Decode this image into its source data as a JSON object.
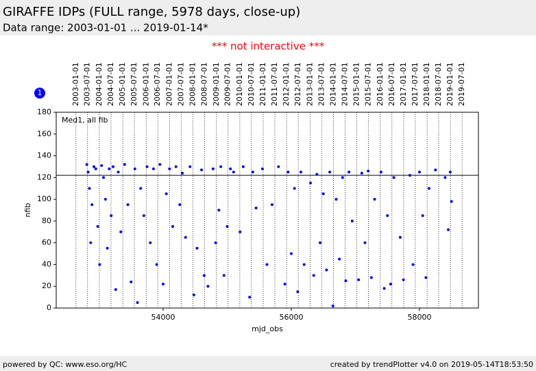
{
  "header": {
    "title": "GIRAFFE IDPs (FULL range, 5978 days, close-up)",
    "subtitle": "Data range: 2003-01-01 ... 2019-01-14*"
  },
  "notice": "*** not interactive ***",
  "badge": "1",
  "footer": {
    "left": "powered by QC: www.eso.org/HC",
    "right": "created by trendPlotter v4.0 on 2019-05-14T18:53:50"
  },
  "chart_data": {
    "type": "scatter",
    "annotation": "Med1, all fib",
    "x_label": "mjd_obs",
    "y_label": "nfib",
    "grid": false,
    "xlim": [
      52332,
      58920
    ],
    "ylim": [
      0,
      180
    ],
    "xticks": [
      54000,
      56000,
      58000
    ],
    "yticks": [
      0,
      20,
      40,
      60,
      80,
      100,
      120,
      140,
      160,
      180
    ],
    "reference_line": 122,
    "date_lines": [
      {
        "value": 52640,
        "label": "2003-01-01"
      },
      {
        "value": 52821,
        "label": "2003-07-01"
      },
      {
        "value": 53005,
        "label": "2004-01-01"
      },
      {
        "value": 53187,
        "label": "2004-07-01"
      },
      {
        "value": 53371,
        "label": "2005-01-01"
      },
      {
        "value": 53552,
        "label": "2005-07-01"
      },
      {
        "value": 53736,
        "label": "2006-01-01"
      },
      {
        "value": 53917,
        "label": "2006-07-01"
      },
      {
        "value": 54101,
        "label": "2007-01-01"
      },
      {
        "value": 54282,
        "label": "2007-07-01"
      },
      {
        "value": 54466,
        "label": "2008-01-01"
      },
      {
        "value": 54648,
        "label": "2008-07-01"
      },
      {
        "value": 54832,
        "label": "2009-01-01"
      },
      {
        "value": 55013,
        "label": "2009-07-01"
      },
      {
        "value": 55197,
        "label": "2010-01-01"
      },
      {
        "value": 55378,
        "label": "2010-07-01"
      },
      {
        "value": 55562,
        "label": "2011-01-01"
      },
      {
        "value": 55743,
        "label": "2011-07-01"
      },
      {
        "value": 55927,
        "label": "2012-01-01"
      },
      {
        "value": 56109,
        "label": "2012-07-01"
      },
      {
        "value": 56293,
        "label": "2013-01-01"
      },
      {
        "value": 56474,
        "label": "2013-07-01"
      },
      {
        "value": 56658,
        "label": "2014-01-01"
      },
      {
        "value": 56839,
        "label": "2014-07-01"
      },
      {
        "value": 57023,
        "label": "2015-01-01"
      },
      {
        "value": 57204,
        "label": "2015-07-01"
      },
      {
        "value": 57388,
        "label": "2016-01-01"
      },
      {
        "value": 57570,
        "label": "2016-07-01"
      },
      {
        "value": 57754,
        "label": "2017-01-01"
      },
      {
        "value": 57935,
        "label": "2017-07-01"
      },
      {
        "value": 58119,
        "label": "2018-01-01"
      },
      {
        "value": 58300,
        "label": "2018-07-01"
      },
      {
        "value": 58484,
        "label": "2019-01-01"
      },
      {
        "value": 58665,
        "label": "2019-07-01"
      }
    ],
    "color": "#0000ff",
    "x": [
      52810,
      52830,
      52850,
      52870,
      52890,
      52920,
      52950,
      52980,
      53010,
      53040,
      53070,
      53100,
      53130,
      53160,
      53190,
      53220,
      53260,
      53300,
      53340,
      53400,
      53450,
      53500,
      53560,
      53600,
      53650,
      53700,
      53750,
      53800,
      53850,
      53900,
      53950,
      54000,
      54050,
      54100,
      54150,
      54200,
      54260,
      54300,
      54350,
      54420,
      54480,
      54530,
      54600,
      54640,
      54700,
      54780,
      54820,
      54870,
      54900,
      54950,
      55000,
      55050,
      55100,
      55200,
      55250,
      55350,
      55400,
      55450,
      55550,
      55620,
      55700,
      55800,
      55900,
      55950,
      56000,
      56050,
      56100,
      56150,
      56200,
      56300,
      56350,
      56400,
      56450,
      56500,
      56550,
      56600,
      56650,
      56700,
      56750,
      56800,
      56850,
      56900,
      56950,
      57050,
      57100,
      57150,
      57200,
      57250,
      57300,
      57400,
      57450,
      57500,
      57550,
      57600,
      57700,
      57750,
      57850,
      57900,
      58000,
      58050,
      58100,
      58150,
      58250,
      58400,
      58450,
      58480,
      58500
    ],
    "y": [
      132,
      125,
      110,
      60,
      95,
      130,
      128,
      75,
      40,
      131,
      120,
      100,
      55,
      128,
      85,
      130,
      17,
      125,
      70,
      132,
      95,
      24,
      128,
      5,
      110,
      85,
      130,
      60,
      128,
      40,
      132,
      22,
      105,
      128,
      75,
      130,
      95,
      124,
      65,
      130,
      12,
      55,
      127,
      30,
      20,
      128,
      60,
      90,
      130,
      30,
      75,
      128,
      125,
      70,
      130,
      10,
      125,
      92,
      128,
      40,
      95,
      130,
      22,
      125,
      50,
      110,
      15,
      125,
      40,
      115,
      30,
      123,
      60,
      105,
      35,
      125,
      2,
      100,
      45,
      120,
      25,
      125,
      80,
      26,
      124,
      60,
      126,
      28,
      100,
      125,
      18,
      85,
      22,
      120,
      65,
      26,
      122,
      40,
      125,
      85,
      28,
      110,
      127,
      120,
      72,
      125,
      98
    ]
  }
}
